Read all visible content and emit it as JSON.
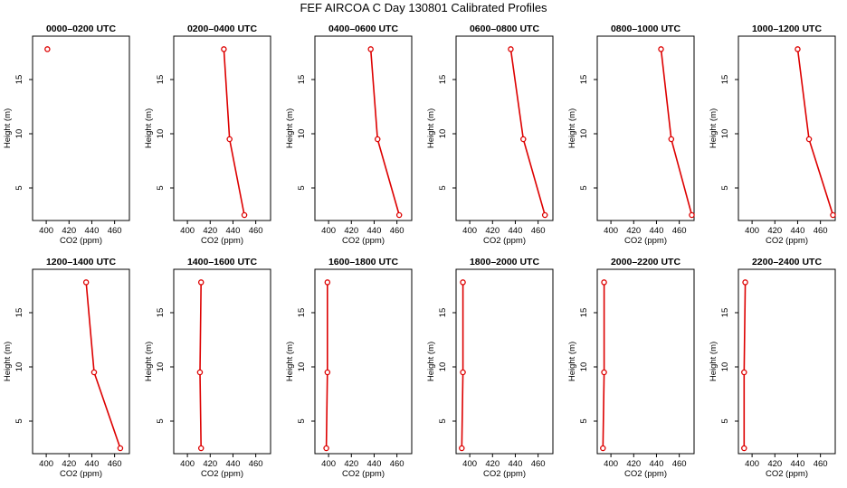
{
  "figure": {
    "title": "FEF AIRCOA C  Day 130801  Calibrated Profiles"
  },
  "chart_data": [
    {
      "type": "line",
      "title": "0000–0200 UTC",
      "xlabel": "CO2 (ppm)",
      "ylabel": "Height (m)",
      "xlim": [
        388,
        473
      ],
      "ylim": [
        2,
        19
      ],
      "xticks": [
        400,
        420,
        440,
        460
      ],
      "yticks": [
        5,
        10,
        15
      ],
      "points": [
        {
          "x": 401,
          "y": 17.8
        }
      ]
    },
    {
      "type": "line",
      "title": "0200–0400 UTC",
      "xlabel": "CO2 (ppm)",
      "ylabel": "Height (m)",
      "xlim": [
        388,
        473
      ],
      "ylim": [
        2,
        19
      ],
      "xticks": [
        400,
        420,
        440,
        460
      ],
      "yticks": [
        5,
        10,
        15
      ],
      "points": [
        {
          "x": 432,
          "y": 17.8
        },
        {
          "x": 437,
          "y": 9.5
        },
        {
          "x": 450,
          "y": 2.5
        }
      ]
    },
    {
      "type": "line",
      "title": "0400–0600 UTC",
      "xlabel": "CO2 (ppm)",
      "ylabel": "Height (m)",
      "xlim": [
        388,
        473
      ],
      "ylim": [
        2,
        19
      ],
      "xticks": [
        400,
        420,
        440,
        460
      ],
      "yticks": [
        5,
        10,
        15
      ],
      "points": [
        {
          "x": 437,
          "y": 17.8
        },
        {
          "x": 443,
          "y": 9.5
        },
        {
          "x": 462,
          "y": 2.5
        }
      ]
    },
    {
      "type": "line",
      "title": "0600–0800 UTC",
      "xlabel": "CO2 (ppm)",
      "ylabel": "Height (m)",
      "xlim": [
        388,
        473
      ],
      "ylim": [
        2,
        19
      ],
      "xticks": [
        400,
        420,
        440,
        460
      ],
      "yticks": [
        5,
        10,
        15
      ],
      "points": [
        {
          "x": 436,
          "y": 17.8
        },
        {
          "x": 447,
          "y": 9.5
        },
        {
          "x": 466,
          "y": 2.5
        }
      ]
    },
    {
      "type": "line",
      "title": "0800–1000 UTC",
      "xlabel": "CO2 (ppm)",
      "ylabel": "Height (m)",
      "xlim": [
        388,
        473
      ],
      "ylim": [
        2,
        19
      ],
      "xticks": [
        400,
        420,
        440,
        460
      ],
      "yticks": [
        5,
        10,
        15
      ],
      "points": [
        {
          "x": 444,
          "y": 17.8
        },
        {
          "x": 453,
          "y": 9.5
        },
        {
          "x": 471,
          "y": 2.5
        }
      ]
    },
    {
      "type": "line",
      "title": "1000–1200 UTC",
      "xlabel": "CO2 (ppm)",
      "ylabel": "Height (m)",
      "xlim": [
        388,
        473
      ],
      "ylim": [
        2,
        19
      ],
      "xticks": [
        400,
        420,
        440,
        460
      ],
      "yticks": [
        5,
        10,
        15
      ],
      "points": [
        {
          "x": 440,
          "y": 17.8
        },
        {
          "x": 450,
          "y": 9.5
        },
        {
          "x": 471,
          "y": 2.5
        }
      ]
    },
    {
      "type": "line",
      "title": "1200–1400 UTC",
      "xlabel": "CO2 (ppm)",
      "ylabel": "Height (m)",
      "xlim": [
        388,
        473
      ],
      "ylim": [
        2,
        19
      ],
      "xticks": [
        400,
        420,
        440,
        460
      ],
      "yticks": [
        5,
        10,
        15
      ],
      "points": [
        {
          "x": 435,
          "y": 17.8
        },
        {
          "x": 442,
          "y": 9.5
        },
        {
          "x": 465,
          "y": 2.5
        }
      ]
    },
    {
      "type": "line",
      "title": "1400–1600 UTC",
      "xlabel": "CO2 (ppm)",
      "ylabel": "Height (m)",
      "xlim": [
        388,
        473
      ],
      "ylim": [
        2,
        19
      ],
      "xticks": [
        400,
        420,
        440,
        460
      ],
      "yticks": [
        5,
        10,
        15
      ],
      "points": [
        {
          "x": 412,
          "y": 17.8
        },
        {
          "x": 411,
          "y": 9.5
        },
        {
          "x": 412,
          "y": 2.5
        }
      ]
    },
    {
      "type": "line",
      "title": "1600–1800 UTC",
      "xlabel": "CO2 (ppm)",
      "ylabel": "Height (m)",
      "xlim": [
        388,
        473
      ],
      "ylim": [
        2,
        19
      ],
      "xticks": [
        400,
        420,
        440,
        460
      ],
      "yticks": [
        5,
        10,
        15
      ],
      "points": [
        {
          "x": 399,
          "y": 17.8
        },
        {
          "x": 399,
          "y": 9.5
        },
        {
          "x": 398,
          "y": 2.5
        }
      ]
    },
    {
      "type": "line",
      "title": "1800–2000 UTC",
      "xlabel": "CO2 (ppm)",
      "ylabel": "Height (m)",
      "xlim": [
        388,
        473
      ],
      "ylim": [
        2,
        19
      ],
      "xticks": [
        400,
        420,
        440,
        460
      ],
      "yticks": [
        5,
        10,
        15
      ],
      "points": [
        {
          "x": 394,
          "y": 17.8
        },
        {
          "x": 394,
          "y": 9.5
        },
        {
          "x": 393,
          "y": 2.5
        }
      ]
    },
    {
      "type": "line",
      "title": "2000–2200 UTC",
      "xlabel": "CO2 (ppm)",
      "ylabel": "Height (m)",
      "xlim": [
        388,
        473
      ],
      "ylim": [
        2,
        19
      ],
      "xticks": [
        400,
        420,
        440,
        460
      ],
      "yticks": [
        5,
        10,
        15
      ],
      "points": [
        {
          "x": 394,
          "y": 17.8
        },
        {
          "x": 394,
          "y": 9.5
        },
        {
          "x": 393,
          "y": 2.5
        }
      ]
    },
    {
      "type": "line",
      "title": "2200–2400 UTC",
      "xlabel": "CO2 (ppm)",
      "ylabel": "Height (m)",
      "xlim": [
        388,
        473
      ],
      "ylim": [
        2,
        19
      ],
      "xticks": [
        400,
        420,
        440,
        460
      ],
      "yticks": [
        5,
        10,
        15
      ],
      "points": [
        {
          "x": 394,
          "y": 17.8
        },
        {
          "x": 393,
          "y": 9.5
        },
        {
          "x": 393,
          "y": 2.5
        }
      ]
    }
  ],
  "colors": {
    "series_line": "#dd0000",
    "series_marker": "#dd0000",
    "axes": "#000000"
  },
  "marker_icon": "open-circle-icon"
}
